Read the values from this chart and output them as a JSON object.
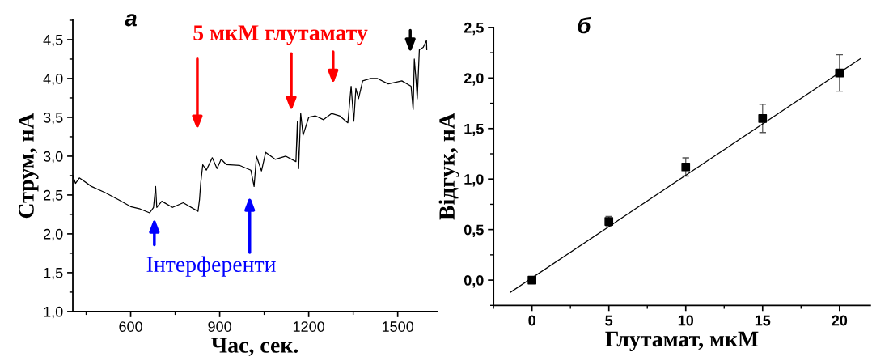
{
  "chart_data": [
    {
      "type": "line",
      "title": "а",
      "xlabel": "Час, сек.",
      "ylabel": "Струм, нА",
      "x": [
        405,
        414,
        427,
        468,
        514,
        559,
        600,
        632,
        664,
        677,
        684,
        688,
        705,
        741,
        777,
        827,
        832,
        836,
        843,
        855,
        875,
        891,
        905,
        923,
        968,
        1005,
        1016,
        1024,
        1041,
        1055,
        1087,
        1123,
        1157,
        1162,
        1166,
        1173,
        1181,
        1200,
        1222,
        1250,
        1277,
        1304,
        1332,
        1343,
        1352,
        1359,
        1368,
        1382,
        1409,
        1432,
        1468,
        1514,
        1545,
        1552,
        1556,
        1562,
        1566,
        1573,
        1586,
        1597,
        1598
      ],
      "series": [
        {
          "color": "#000000",
          "values": [
            2.75,
            2.65,
            2.72,
            2.61,
            2.53,
            2.44,
            2.35,
            2.32,
            2.27,
            2.34,
            2.61,
            2.34,
            2.42,
            2.34,
            2.4,
            2.29,
            2.44,
            2.65,
            2.89,
            2.82,
            2.98,
            2.84,
            2.96,
            2.89,
            2.88,
            2.82,
            2.61,
            3.0,
            2.81,
            3.05,
            2.96,
            3.0,
            2.93,
            3.45,
            2.84,
            3.55,
            3.27,
            3.5,
            3.52,
            3.47,
            3.55,
            3.52,
            3.43,
            3.9,
            3.45,
            3.87,
            3.74,
            3.97,
            4.0,
            4.0,
            3.93,
            3.97,
            3.9,
            3.6,
            4.25,
            3.97,
            3.74,
            4.37,
            4.4,
            4.49,
            4.37
          ]
        }
      ],
      "xlim": [
        405,
        1632
      ],
      "xticks": [
        600,
        900,
        1200,
        1500
      ],
      "ylim": [
        1.0,
        4.75
      ],
      "yticks": [
        {
          "value": 1.0,
          "label": "1,0"
        },
        {
          "value": 1.5,
          "label": "1,5"
        },
        {
          "value": 2.0,
          "label": "2,0"
        },
        {
          "value": 2.5,
          "label": "2,5"
        },
        {
          "value": 3.0,
          "label": "3,0"
        },
        {
          "value": 3.5,
          "label": "3,5"
        },
        {
          "value": 4.0,
          "label": "4,0"
        },
        {
          "value": 4.5,
          "label": "4,5"
        }
      ],
      "grid": false,
      "legend": false,
      "marker": "none",
      "line_style": "solid",
      "annotations": [
        "5 мкМ глутамату",
        "Інтерференти"
      ]
    },
    {
      "type": "scatter",
      "title": "б",
      "xlabel": "Глутамат, мкМ",
      "ylabel": "Відгук, нА",
      "series": [
        {
          "type": "scatter",
          "color": "#000000",
          "x": [
            0,
            5,
            10,
            15,
            20
          ],
          "values": [
            0.0,
            0.58,
            1.12,
            1.6,
            2.05
          ],
          "errors": [
            null,
            0.05,
            0.09,
            0.14,
            0.18
          ],
          "marker": "square"
        },
        {
          "type": "line",
          "color": "#000000",
          "x": [
            -1.4,
            21.35
          ],
          "values": [
            -0.12,
            2.19
          ],
          "marker": "none"
        }
      ],
      "xlim": [
        -2.5,
        22
      ],
      "xticks": [
        0,
        5,
        10,
        15,
        20
      ],
      "ylim": [
        -0.25,
        2.5
      ],
      "yticks": [
        {
          "value": 0.0,
          "label": "0,0"
        },
        {
          "value": 0.5,
          "label": "0,5"
        },
        {
          "value": 1.0,
          "label": "1,0"
        },
        {
          "value": 1.5,
          "label": "1,5"
        },
        {
          "value": 2.0,
          "label": "2,0"
        },
        {
          "value": 2.5,
          "label": "2,5"
        }
      ],
      "grid": false,
      "legend": false
    }
  ]
}
